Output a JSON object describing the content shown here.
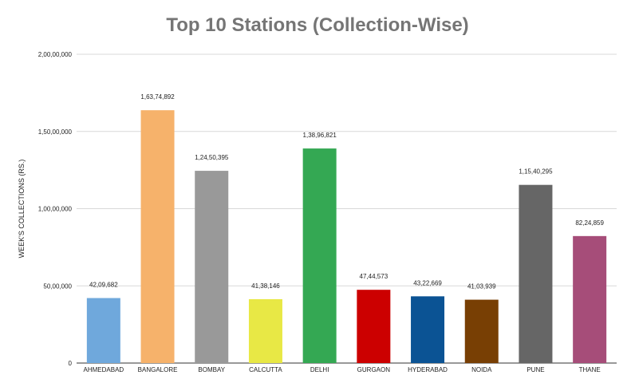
{
  "chart_data": {
    "type": "bar",
    "title": "Top 10 Stations (Collection-Wise)",
    "xlabel": "",
    "ylabel": "WEEK'S COLLECTIONS (RS.)",
    "ylim": [
      0,
      20000000
    ],
    "yticks": [
      0,
      5000000,
      10000000,
      15000000,
      20000000
    ],
    "ytick_labels": [
      "0",
      "50,00,000",
      "1,00,00,000",
      "1,50,00,000",
      "2,00,00,000"
    ],
    "grid": true,
    "legend": "none",
    "categories": [
      "AHMEDABAD",
      "BANGALORE",
      "BOMBAY",
      "CALCUTTA",
      "DELHI",
      "GURGAON",
      "HYDERABAD",
      "NOIDA",
      "PUNE",
      "THANE"
    ],
    "values": [
      4209682,
      16374892,
      12450395,
      4138146,
      13896821,
      4744573,
      4322669,
      4103939,
      11540295,
      8224859
    ],
    "value_labels": [
      "42,09,682",
      "1,63,74,892",
      "1,24,50,395",
      "41,38,146",
      "1,38,96,821",
      "47,44,573",
      "43,22,669",
      "41,03,939",
      "1,15,40,295",
      "82,24,859"
    ],
    "colors": [
      "#6fa8dc",
      "#f6b26b",
      "#999999",
      "#e8e845",
      "#34a853",
      "#cc0000",
      "#0b5394",
      "#783f04",
      "#666666",
      "#a64d79"
    ]
  }
}
